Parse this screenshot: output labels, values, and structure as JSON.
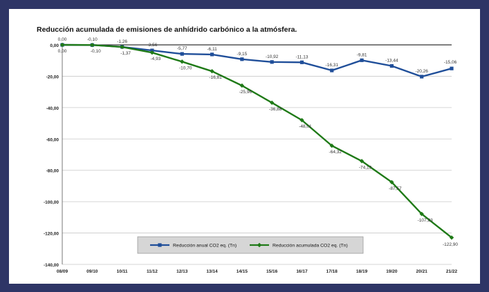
{
  "page": {
    "background": "#2e3566",
    "panel_background": "#ffffff"
  },
  "chart_data": {
    "type": "line",
    "title": "Reducción acumulada de emisiones de anhídrido carbónico a la atmósfera.",
    "categories": [
      "08/09",
      "09/10",
      "10/11",
      "11/12",
      "12/13",
      "13/14",
      "14/15",
      "15/16",
      "16/17",
      "17/18",
      "18/19",
      "19/20",
      "20/21",
      "21/22"
    ],
    "ylim": [
      -140,
      0
    ],
    "yticks": [
      0,
      -20,
      -40,
      -60,
      -80,
      -100,
      -120,
      -140
    ],
    "ytick_labels": [
      "0,00",
      "-20,00",
      "-40,00",
      "-60,00",
      "-80,00",
      "-100,00",
      "-120,00",
      "-140,00"
    ],
    "grid": true,
    "legend_position": "bottom-center",
    "series": [
      {
        "name": "Reducción anual CO2 eq. (Tn)",
        "color": "#1f4e99",
        "marker": "square",
        "values": [
          0.0,
          -0.1,
          -1.26,
          -3.56,
          -5.77,
          -6.11,
          -9.15,
          -10.92,
          -11.13,
          -16.31,
          -9.81,
          -13.44,
          -20.26,
          -15.06
        ],
        "labels": [
          "0,00",
          "-0,10",
          "-1,26",
          "-3,56",
          "-5,77",
          "-6,11",
          "-9,15",
          "-10,92",
          "-11,13",
          "-16,31",
          "-9,81",
          "-13,44",
          "-20,26",
          "-15,06"
        ]
      },
      {
        "name": "Reducción acumulada CO2 eq. (Tn)",
        "color": "#1f7a17",
        "marker": "diamond",
        "values": [
          0.0,
          -0.1,
          -1.37,
          -4.93,
          -10.7,
          -16.81,
          -25.96,
          -36.88,
          -48.01,
          -64.32,
          -74.13,
          -87.57,
          -107.83,
          -122.9
        ],
        "labels": [
          "0,00",
          "-0,10",
          "-1,37",
          "-4,93",
          "-10,70",
          "-16,81",
          "-25,96",
          "-36,88",
          "-48,01",
          "-64,32",
          "-74,13",
          "-87,57",
          "-107,83",
          "-122,90"
        ]
      }
    ]
  }
}
